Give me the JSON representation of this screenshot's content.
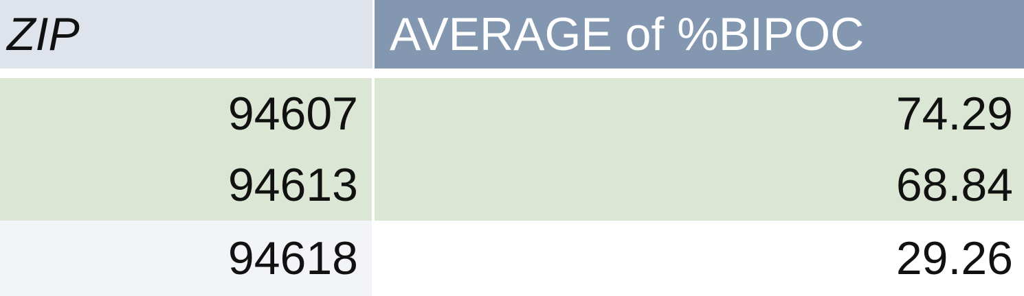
{
  "header": {
    "zip_label": "ZIP",
    "avg_label": "AVERAGE of %BIPOC"
  },
  "rows": [
    {
      "zip": "94607",
      "avg": "74.29",
      "highlighted": true
    },
    {
      "zip": "94613",
      "avg": "68.84",
      "highlighted": true
    },
    {
      "zip": "94618",
      "avg": "29.26",
      "highlighted": false
    }
  ],
  "colors": {
    "header_zip_bg": "#dfe3ec",
    "header_avg_bg": "#8497b0",
    "highlight_bg": "#dbe7d4",
    "plain_zip_bg": "#f3f4f7"
  }
}
